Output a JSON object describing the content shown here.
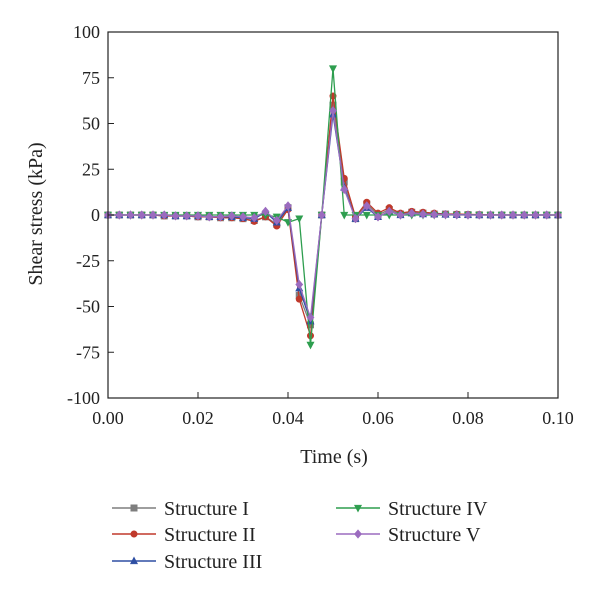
{
  "chart_data": {
    "type": "line",
    "title": "",
    "xlabel": "Time (s)",
    "ylabel": "Shear stress (kPa)",
    "xlim": [
      0,
      0.1
    ],
    "ylim": [
      -100,
      100
    ],
    "xticks": [
      "0.00",
      "0.02",
      "0.04",
      "0.06",
      "0.08",
      "0.10"
    ],
    "yticks": [
      "100",
      "75",
      "50",
      "25",
      "0",
      "-25",
      "-50",
      "-75",
      "-100"
    ],
    "grid": false,
    "legend": "bottom",
    "series": [
      {
        "name": "Structure I",
        "color": "#7f7f7f",
        "marker": "square",
        "x": [
          0.0,
          0.0025,
          0.005,
          0.0075,
          0.01,
          0.0125,
          0.015,
          0.0175,
          0.02,
          0.0225,
          0.025,
          0.0275,
          0.03,
          0.0325,
          0.035,
          0.0375,
          0.04,
          0.0425,
          0.045,
          0.0475,
          0.05,
          0.0525,
          0.055,
          0.0575,
          0.06,
          0.0625,
          0.065,
          0.0675,
          0.07,
          0.0725,
          0.075,
          0.0775,
          0.08,
          0.0825,
          0.085,
          0.0875,
          0.09,
          0.0925,
          0.095,
          0.0975,
          0.1
        ],
        "y": [
          0,
          0,
          0,
          0,
          0,
          -0.5,
          -0.5,
          -0.5,
          -1,
          -1,
          -1.5,
          -1.5,
          -2,
          -3,
          -1,
          -5,
          4,
          -44,
          -60,
          0,
          60,
          18,
          -2,
          6,
          0,
          3,
          0.5,
          1.5,
          1,
          0.5,
          0.5,
          0.3,
          0.2,
          0.1,
          0,
          0,
          0,
          0,
          0,
          0,
          0
        ]
      },
      {
        "name": "Structure II",
        "color": "#c0392b",
        "marker": "circle",
        "x": [
          0.0,
          0.0025,
          0.005,
          0.0075,
          0.01,
          0.0125,
          0.015,
          0.0175,
          0.02,
          0.0225,
          0.025,
          0.0275,
          0.03,
          0.0325,
          0.035,
          0.0375,
          0.04,
          0.0425,
          0.045,
          0.0475,
          0.05,
          0.0525,
          0.055,
          0.0575,
          0.06,
          0.0625,
          0.065,
          0.0675,
          0.07,
          0.0725,
          0.075,
          0.0775,
          0.08,
          0.0825,
          0.085,
          0.0875,
          0.09,
          0.0925,
          0.095,
          0.0975,
          0.1
        ],
        "y": [
          0,
          0,
          0,
          0,
          0,
          -0.5,
          -0.5,
          -0.5,
          -1,
          -1,
          -1.5,
          -1.5,
          -2,
          -3.5,
          -1,
          -6,
          3,
          -46,
          -66,
          0,
          65,
          20,
          -1,
          7,
          1,
          4,
          1,
          2,
          1.5,
          1,
          0.5,
          0.5,
          0.3,
          0.2,
          0.1,
          0,
          0,
          0,
          0,
          0,
          0
        ]
      },
      {
        "name": "Structure III",
        "color": "#2e4fa3",
        "marker": "triangle",
        "x": [
          0.0,
          0.0025,
          0.005,
          0.0075,
          0.01,
          0.0125,
          0.015,
          0.0175,
          0.02,
          0.0225,
          0.025,
          0.0275,
          0.03,
          0.0325,
          0.035,
          0.0375,
          0.04,
          0.0425,
          0.045,
          0.0475,
          0.05,
          0.0525,
          0.055,
          0.0575,
          0.06,
          0.0625,
          0.065,
          0.0675,
          0.07,
          0.0725,
          0.075,
          0.0775,
          0.08,
          0.0825,
          0.085,
          0.0875,
          0.09,
          0.0925,
          0.095,
          0.0975,
          0.1
        ],
        "y": [
          0,
          0,
          0,
          0,
          0,
          0,
          -0.5,
          -0.5,
          -0.5,
          -1,
          -1,
          -1,
          -1.5,
          -2,
          1.5,
          -4,
          4,
          -40,
          -58,
          0,
          55,
          15,
          -2,
          4,
          -1,
          2,
          0,
          1,
          0.5,
          0.5,
          0.3,
          0.2,
          0.1,
          0,
          0,
          0,
          0,
          0,
          0,
          0,
          0
        ]
      },
      {
        "name": "Structure IV",
        "color": "#2e9e4f",
        "marker": "triangle-down",
        "x": [
          0.0,
          0.0025,
          0.005,
          0.0075,
          0.01,
          0.0125,
          0.015,
          0.0175,
          0.02,
          0.0225,
          0.025,
          0.0275,
          0.03,
          0.0325,
          0.035,
          0.0375,
          0.04,
          0.0425,
          0.045,
          0.0475,
          0.05,
          0.0525,
          0.055,
          0.0575,
          0.06,
          0.0625,
          0.065,
          0.0675,
          0.07,
          0.0725,
          0.075,
          0.0775,
          0.08,
          0.0825,
          0.085,
          0.0875,
          0.09,
          0.0925,
          0.095,
          0.0975,
          0.1
        ],
        "y": [
          0,
          0,
          0,
          0,
          0,
          0,
          0,
          0,
          0,
          0,
          0,
          0,
          0,
          0,
          0,
          -1,
          -4,
          -2,
          -71,
          0,
          80,
          0,
          0,
          0,
          0,
          0,
          0,
          0,
          0,
          0,
          0,
          0,
          0,
          0,
          0,
          0,
          0,
          0,
          0,
          0,
          0
        ]
      },
      {
        "name": "Structure V",
        "color": "#9b6bbf",
        "marker": "diamond",
        "x": [
          0.0,
          0.0025,
          0.005,
          0.0075,
          0.01,
          0.0125,
          0.015,
          0.0175,
          0.02,
          0.0225,
          0.025,
          0.0275,
          0.03,
          0.0325,
          0.035,
          0.0375,
          0.04,
          0.0425,
          0.045,
          0.0475,
          0.05,
          0.0525,
          0.055,
          0.0575,
          0.06,
          0.0625,
          0.065,
          0.0675,
          0.07,
          0.0725,
          0.075,
          0.0775,
          0.08,
          0.0825,
          0.085,
          0.0875,
          0.09,
          0.0925,
          0.095,
          0.0975,
          0.1
        ],
        "y": [
          0,
          0,
          0,
          0,
          0,
          0,
          -0.5,
          -0.5,
          -0.5,
          -1,
          -1,
          -0.5,
          -1,
          -1.5,
          2,
          -3,
          5,
          -38,
          -56,
          0,
          57,
          14,
          -2,
          5,
          -1,
          2,
          0,
          1,
          0.5,
          0.3,
          0.2,
          0.1,
          0,
          0,
          0,
          0,
          0,
          0,
          0,
          0,
          0
        ]
      }
    ]
  }
}
